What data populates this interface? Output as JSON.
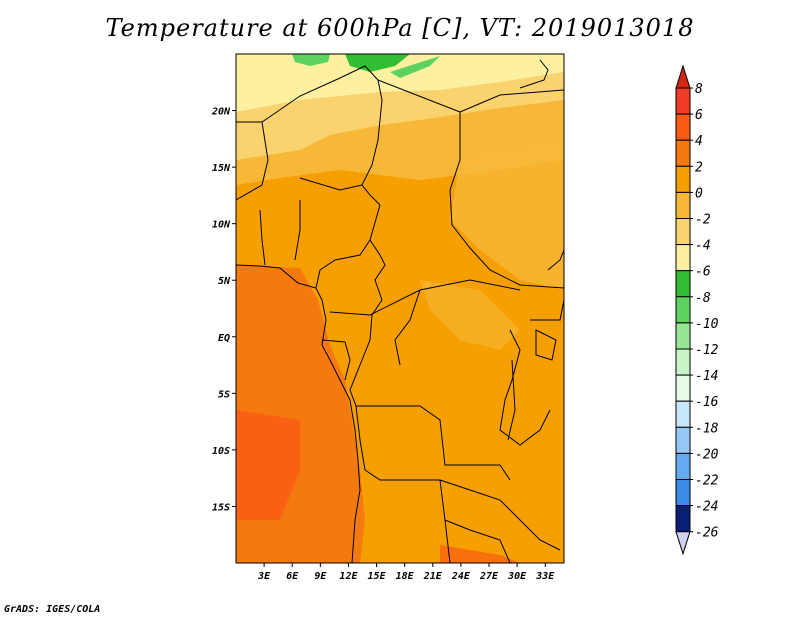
{
  "title": "Temperature at 600hPa [C], VT: 2019013018",
  "credit": "GrADS: IGES/COLA",
  "map": {
    "lat_labels": [
      {
        "lat": 20,
        "label": "20N"
      },
      {
        "lat": 15,
        "label": "15N"
      },
      {
        "lat": 10,
        "label": "10N"
      },
      {
        "lat": 5,
        "label": "5N"
      },
      {
        "lat": 0,
        "label": "EQ"
      },
      {
        "lat": -5,
        "label": "5S"
      },
      {
        "lat": -10,
        "label": "10S"
      },
      {
        "lat": -15,
        "label": "15S"
      }
    ],
    "lon_labels": [
      {
        "lon": 3,
        "label": "3E"
      },
      {
        "lon": 6,
        "label": "6E"
      },
      {
        "lon": 9,
        "label": "9E"
      },
      {
        "lon": 12,
        "label": "12E"
      },
      {
        "lon": 15,
        "label": "15E"
      },
      {
        "lon": 18,
        "label": "18E"
      },
      {
        "lon": 21,
        "label": "21E"
      },
      {
        "lon": 24,
        "label": "24E"
      },
      {
        "lon": 27,
        "label": "27E"
      },
      {
        "lon": 30,
        "label": "30E"
      },
      {
        "lon": 33,
        "label": "33E"
      }
    ],
    "lon_range": [
      0,
      35
    ],
    "lat_range": [
      -20,
      25
    ]
  },
  "colorbar": {
    "levels": [
      {
        "label": "8",
        "color": "#f03c28"
      },
      {
        "label": "6",
        "color": "#fa5a14"
      },
      {
        "label": "4",
        "color": "#f47a10"
      },
      {
        "label": "2",
        "color": "#f5a000"
      },
      {
        "label": "0",
        "color": "#f7b838"
      },
      {
        "label": "-2",
        "color": "#fad26e"
      },
      {
        "label": "-4",
        "color": "#fdf0a0"
      },
      {
        "label": "-6",
        "color": "#32be32"
      },
      {
        "label": "-8",
        "color": "#5ed25e"
      },
      {
        "label": "-10",
        "color": "#96e696"
      },
      {
        "label": "-12",
        "color": "#c8f5c8"
      },
      {
        "label": "-14",
        "color": "#e6fae6"
      },
      {
        "label": "-16",
        "color": "#c8e6fa"
      },
      {
        "label": "-18",
        "color": "#96c8f5"
      },
      {
        "label": "-20",
        "color": "#64aaf0"
      },
      {
        "label": "-22",
        "color": "#3c8ce6"
      },
      {
        "label": "-24",
        "color": "#1e64d2"
      },
      {
        "label": "-26",
        "color": "#1446b4"
      }
    ],
    "top_color": "#d22814",
    "bottom_colors": [
      "#0a1e78",
      "#d2d2f0"
    ]
  }
}
